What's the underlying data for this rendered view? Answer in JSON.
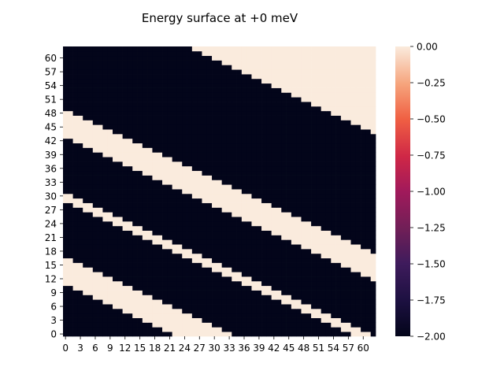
{
  "chart_data": {
    "type": "heatmap",
    "title": "Energy surface at +0 meV",
    "xlabel": "",
    "ylabel": "",
    "grid_size": 63,
    "value_range": [
      -2.0,
      0.0
    ],
    "x_tick_labels": [
      "0",
      "3",
      "6",
      "9",
      "12",
      "15",
      "18",
      "21",
      "24",
      "27",
      "30",
      "33",
      "36",
      "39",
      "42",
      "45",
      "48",
      "51",
      "54",
      "57",
      "60"
    ],
    "y_tick_labels": [
      "0",
      "3",
      "6",
      "9",
      "12",
      "15",
      "18",
      "21",
      "24",
      "27",
      "30",
      "33",
      "36",
      "39",
      "42",
      "45",
      "48",
      "51",
      "54",
      "57",
      "60"
    ],
    "colorbar": {
      "colormap": "rocket",
      "tick_labels": [
        "0.00",
        "−0.25",
        "−0.50",
        "−0.75",
        "−1.00",
        "−1.25",
        "−1.50",
        "−1.75",
        "−2.00"
      ],
      "tick_values": [
        0.0,
        -0.25,
        -0.5,
        -0.75,
        -1.0,
        -1.25,
        -1.5,
        -1.75,
        -2.0
      ]
    },
    "cell_values": [
      0.0,
      -2.0
    ],
    "bands": [
      {
        "value": -2.0,
        "slope": -0.5,
        "from_row_intercept": 17,
        "to_row_intercept": 43,
        "description": "main dark band"
      },
      {
        "value": -2.0,
        "slope": -0.5,
        "from_row_intercept": -15,
        "to_row_intercept": 11,
        "description": "lower-right dark band (wrap)"
      },
      {
        "value": -2.0,
        "slope": -0.5,
        "from_row_intercept": 49,
        "to_row_intercept": 75,
        "description": "upper-left dark band (wrap)"
      },
      {
        "value": 0.0,
        "slope": -0.5,
        "from_row_intercept": 29,
        "to_row_intercept": 31,
        "description": "thin light seam inside main band"
      }
    ]
  }
}
